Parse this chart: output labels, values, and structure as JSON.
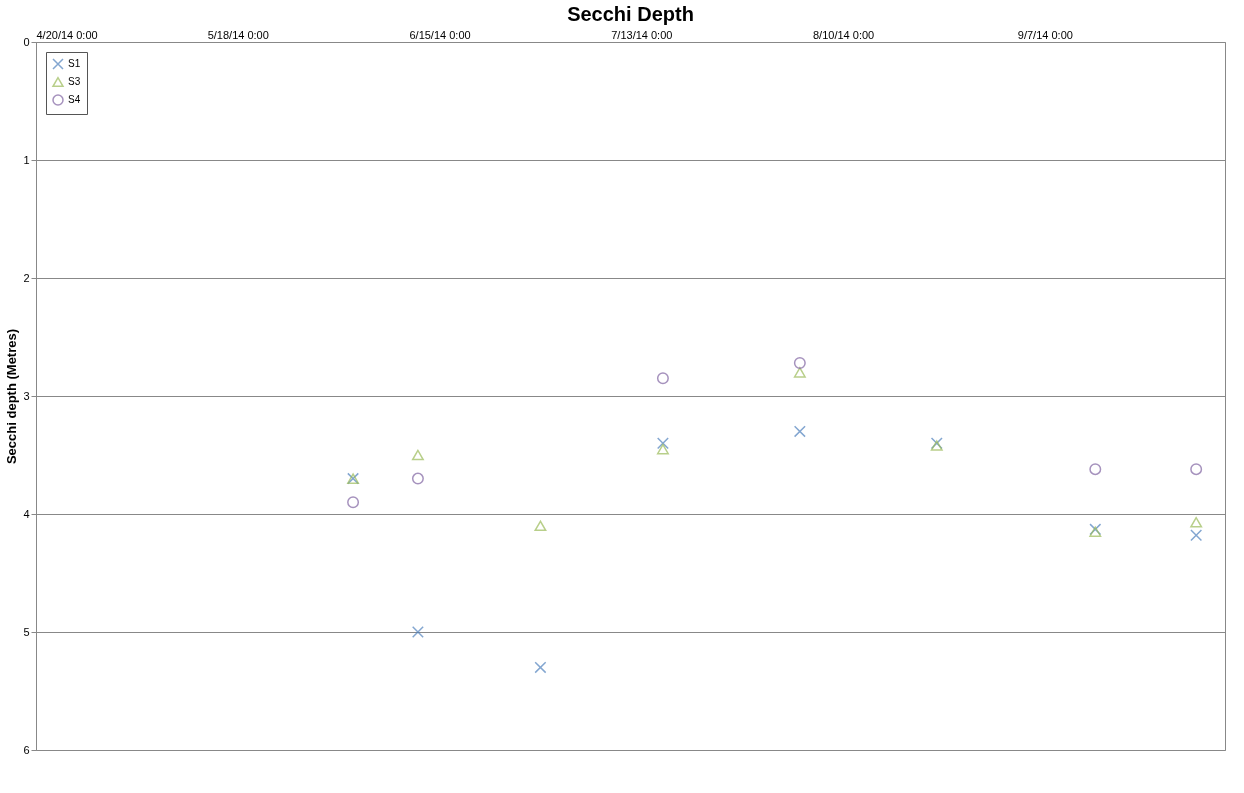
{
  "chart_data": {
    "type": "scatter",
    "title": "Secchi Depth",
    "ylabel": "Secchi depth (Metres)",
    "x": [
      "2014-06-03",
      "2014-06-12",
      "2014-06-29",
      "2014-07-16",
      "2014-08-04",
      "2014-08-23",
      "2014-09-14",
      "2014-09-28"
    ],
    "series": [
      {
        "name": "S1",
        "color": "#4f81bd",
        "marker": "cross",
        "values": [
          3.7,
          5.0,
          5.3,
          3.4,
          3.3,
          3.4,
          4.13,
          4.18
        ]
      },
      {
        "name": "S3",
        "color": "#9bbb59",
        "marker": "triangle",
        "values": [
          3.7,
          3.5,
          4.1,
          3.45,
          2.8,
          3.42,
          4.15,
          4.07
        ]
      },
      {
        "name": "S4",
        "color": "#8064a2",
        "marker": "circle",
        "values": [
          3.9,
          3.7,
          null,
          2.85,
          2.72,
          null,
          3.62,
          3.62
        ]
      }
    ],
    "xlim": [
      "2014-04-20",
      "2014-10-02"
    ],
    "xticks": [
      {
        "value": "2014-04-20",
        "label": "4/20/14 0:00"
      },
      {
        "value": "2014-05-18",
        "label": "5/18/14 0:00"
      },
      {
        "value": "2014-06-15",
        "label": "6/15/14 0:00"
      },
      {
        "value": "2014-07-13",
        "label": "7/13/14 0:00"
      },
      {
        "value": "2014-08-10",
        "label": "8/10/14 0:00"
      },
      {
        "value": "2014-09-07",
        "label": "9/7/14 0:00"
      }
    ],
    "ylim": [
      6,
      0
    ],
    "yticks": [
      0,
      1,
      2,
      3,
      4,
      5,
      6
    ],
    "grid": "y",
    "legend": "top left"
  }
}
